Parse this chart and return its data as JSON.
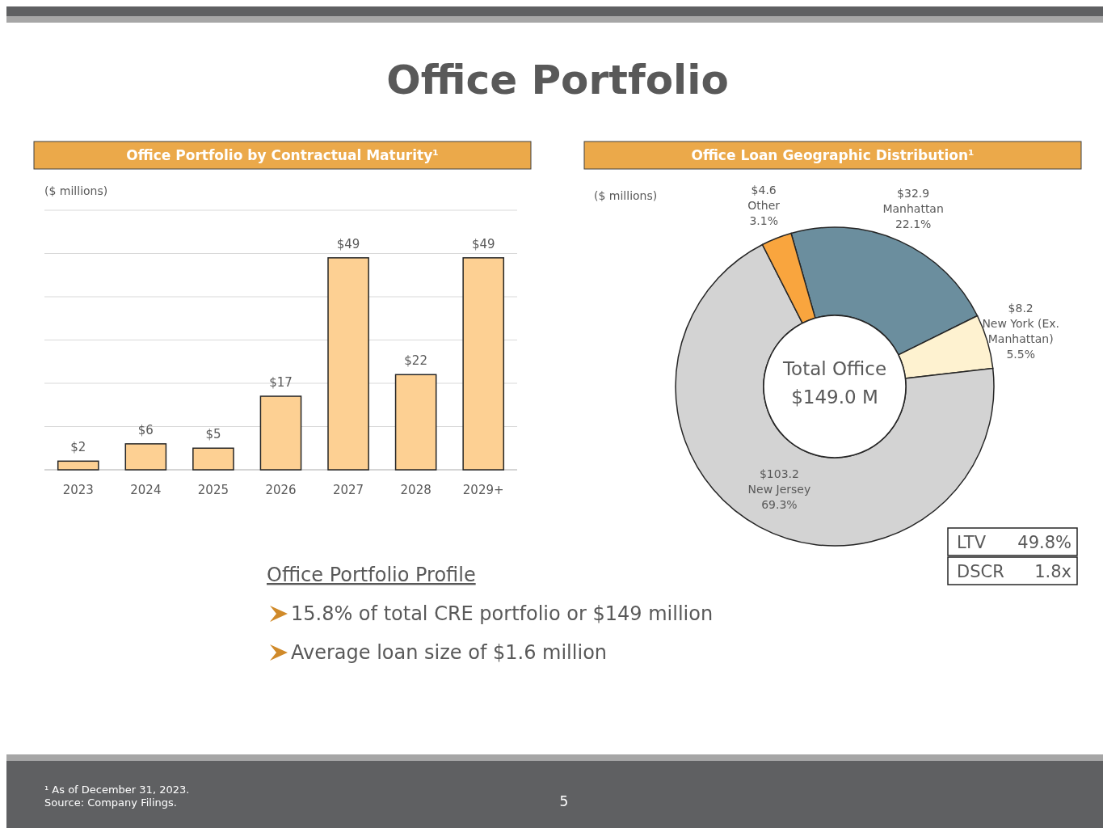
{
  "chart_data": [
    {
      "type": "bar",
      "title": "Office Portfolio by Contractual Maturity¹",
      "ylabel": "($ millions)",
      "categories": [
        "2023",
        "2024",
        "2025",
        "2026",
        "2027",
        "2028",
        "2029+"
      ],
      "values": [
        2,
        6,
        5,
        17,
        49,
        22,
        49
      ],
      "color": "#fdd093",
      "value_labels": [
        "$2",
        "$6",
        "$5",
        "$17",
        "$49",
        "$22",
        "$49"
      ],
      "ylim": [
        0,
        60
      ],
      "yticks": [
        {
          "value": 0,
          "label": null
        },
        {
          "value": 10,
          "label": null
        },
        {
          "value": 20,
          "label": null
        },
        {
          "value": 30,
          "label": null
        },
        {
          "value": 40,
          "label": null
        },
        {
          "value": 50,
          "label": null
        },
        {
          "value": 60,
          "label": null
        }
      ],
      "grid": "y"
    },
    {
      "type": "donut",
      "title": "Office Loan Geographic Distribution¹",
      "categories": [
        "Manhattan",
        "New York (Ex. Manhattan)",
        "New Jersey",
        "Other"
      ],
      "values": [
        32.9,
        8.2,
        103.2,
        4.6
      ],
      "colors": [
        "#6b8e9e",
        "#fef2d0",
        "#d3d3d3",
        "#f9a53e"
      ],
      "value_labels": [
        "$32.9",
        "$8.2",
        "$103.2",
        "$4.6"
      ],
      "annotations": [
        "($ millions)",
        "Total Office",
        "$149.0 M",
        "LTV 49.8%",
        "DSCR 1.8x",
        {
          "text": "22.1%",
          "x": "Manhattan"
        },
        {
          "text": "5.5%",
          "x": "New York (Ex. Manhattan)"
        },
        {
          "text": "69.3%",
          "x": "New Jersey"
        },
        {
          "text": "3.1%",
          "x": "Other"
        }
      ]
    },
    {
      "type": "other",
      "title": "Office Portfolio Profile",
      "annotations": [
        "15.8% of total CRE portfolio or $149 million",
        "Average loan size of $1.6 million"
      ]
    },
    {
      "type": "other",
      "title": "Office Portfolio",
      "annotations": [
        "¹ As of December 31, 2023.",
        "Source: Company Filings.",
        "5"
      ]
    }
  ]
}
